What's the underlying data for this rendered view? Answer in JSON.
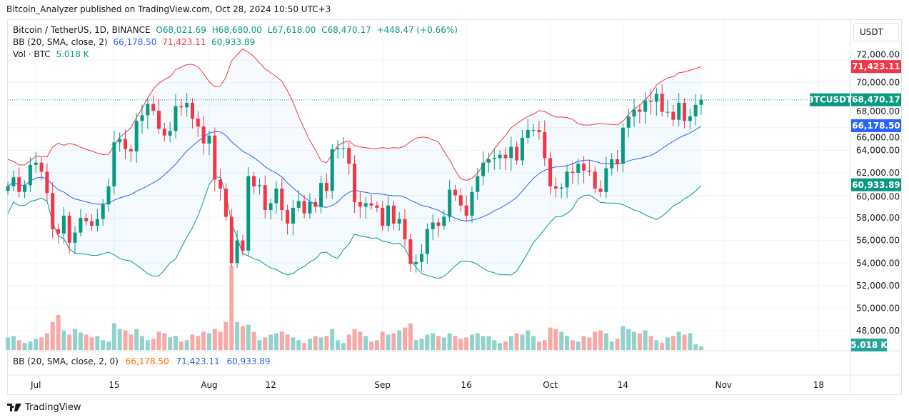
{
  "published": "Bitcoin_Analyzer published on TradingView.com, Oct 28, 2024 10:50 UTC+3",
  "legend": {
    "symbol": "Bitcoin / TetherUS, 1D, BINANCE",
    "o": "O68,021.69",
    "h": "H68,680.00",
    "l": "L67,618.00",
    "c": "C68,470.17",
    "change": "+448.47 (+0.66%)",
    "bb_label": "BB (20, SMA, close, 2)",
    "bb_basis": "66,178.50",
    "bb_upper": "71,423.11",
    "bb_lower": "60,933.89",
    "vol_label": "Vol · BTC",
    "vol_value": "5.018 K"
  },
  "bb_pane": {
    "label": "BB (20, SMA, close, 2, 0)",
    "basis": "66,178.50",
    "upper": "71,423.11",
    "lower": "60,933.89"
  },
  "currency_button": "USDT",
  "price_axis": {
    "ticks": [
      "72,000.00",
      "70,000.00",
      "68,000.00",
      "66,000.00",
      "64,000.00",
      "62,000.00",
      "60,000.00",
      "58,000.00",
      "56,000.00",
      "54,000.00",
      "52,000.00",
      "50,000.00",
      "48,000.00"
    ],
    "tick_values": [
      72000,
      70000,
      68000,
      66000,
      64000,
      62000,
      60000,
      58000,
      56000,
      54000,
      52000,
      50000,
      48000
    ],
    "badges": {
      "symbol": "BTCUSDT",
      "last": "68,470.17",
      "upper": "71,423.11",
      "basis": "66,178.50",
      "lower": "60,933.89",
      "volume": "5.018 K"
    }
  },
  "time_axis": {
    "labels": [
      "Jul",
      "15",
      "Aug",
      "12",
      "Sep",
      "16",
      "Oct",
      "14",
      "Nov",
      "18"
    ],
    "label_day_index": [
      5,
      19,
      36,
      47,
      67,
      82,
      97,
      110,
      128,
      145
    ]
  },
  "colors": {
    "up": "#089981",
    "down": "#f23645",
    "vol_up": "#92d2cc",
    "vol_down": "#f7a9a7",
    "bb_basis": "#2962ff",
    "bb_upper": "#f23645",
    "bb_lower": "#089981",
    "bb_fill": "#2196f3"
  },
  "footer": "TradingView",
  "chart_data": {
    "type": "candlestick",
    "first_date": "2024-06-26",
    "last_date": "2024-10-28",
    "ylim": [
      47000,
      73500
    ],
    "closes": [
      60800,
      61600,
      60300,
      60900,
      62700,
      62900,
      62100,
      60200,
      57000,
      56600,
      58200,
      55800,
      56700,
      58000,
      57700,
      57300,
      57900,
      59200,
      60800,
      64700,
      65000,
      64100,
      63900,
      66600,
      67100,
      68100,
      67500,
      65900,
      65300,
      65700,
      67900,
      67800,
      68200,
      66800,
      66100,
      64600,
      65300,
      61400,
      60600,
      58100,
      54000,
      56000,
      55100,
      61700,
      60800,
      60900,
      58700,
      59300,
      60600,
      58700,
      57500,
      58900,
      59500,
      58400,
      59400,
      59000,
      61100,
      60400,
      64100,
      64200,
      64200,
      62800,
      59400,
      59000,
      59300,
      59100,
      58900,
      57300,
      59100,
      57500,
      57900,
      56100,
      53900,
      54100,
      54800,
      57000,
      57600,
      57300,
      58100,
      60500,
      60000,
      59100,
      58200,
      60300,
      61700,
      62900,
      63200,
      63300,
      63600,
      63300,
      64300,
      63100,
      65100,
      65800,
      65800,
      65600,
      63300,
      60800,
      60600,
      60700,
      62100,
      62000,
      62800,
      62200,
      62100,
      60600,
      60300,
      62400,
      63200,
      62800,
      66000,
      67000,
      67600,
      67400,
      68400,
      68300,
      69000,
      67400,
      67400,
      66700,
      68200,
      66600,
      67000,
      68021.69,
      68470.17
    ],
    "volumes_k": [
      18,
      20,
      14,
      10,
      12,
      16,
      18,
      24,
      40,
      50,
      28,
      22,
      30,
      25,
      22,
      18,
      20,
      14,
      12,
      38,
      30,
      28,
      22,
      30,
      20,
      14,
      16,
      26,
      24,
      18,
      20,
      12,
      14,
      22,
      20,
      26,
      24,
      30,
      26,
      40,
      120,
      40,
      34,
      36,
      26,
      14,
      18,
      22,
      24,
      26,
      22,
      18,
      14,
      10,
      16,
      20,
      18,
      20,
      30,
      14,
      10,
      22,
      30,
      26,
      20,
      12,
      14,
      26,
      22,
      24,
      28,
      32,
      38,
      14,
      16,
      22,
      24,
      20,
      18,
      24,
      20,
      16,
      18,
      22,
      24,
      20,
      20,
      14,
      10,
      12,
      20,
      24,
      22,
      28,
      20,
      12,
      14,
      32,
      30,
      26,
      20,
      14,
      12,
      20,
      18,
      26,
      28,
      24,
      12,
      16,
      34,
      30,
      26,
      24,
      28,
      20,
      14,
      10,
      18,
      20,
      26,
      22,
      24,
      8,
      5.018
    ]
  }
}
